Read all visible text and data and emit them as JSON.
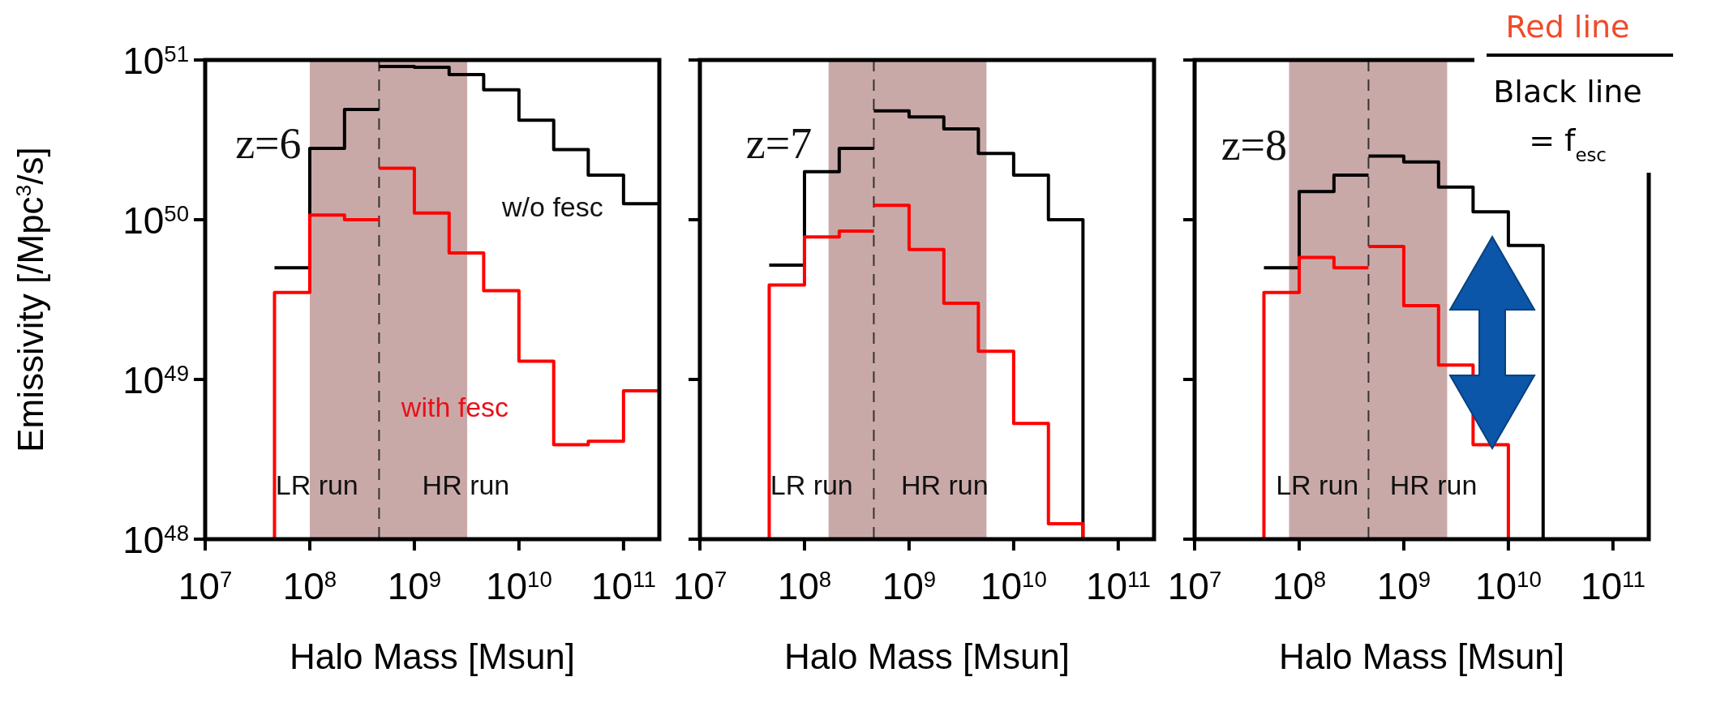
{
  "chart_data": [
    {
      "type": "step",
      "xlabel": "Halo Mass [Msun]",
      "ylabel": "Emissivity [/Mpc$^{3}$/s]",
      "log": "xy",
      "xlim": [
        10000000.0,
        220000000000.0
      ],
      "ylim": [
        1e+48,
        1e+51
      ],
      "xticks": [
        {
          "value": 10000000.0,
          "label": "10$^{7}$"
        },
        {
          "value": 100000000.0,
          "label": "10$^{8}$"
        },
        {
          "value": 1000000000.0,
          "label": "10$^{9}$"
        },
        {
          "value": 10000000000.0,
          "label": "10$^{10}$"
        },
        {
          "value": 100000000000.0,
          "label": "10$^{11}$"
        }
      ],
      "yticks": [
        {
          "value": 1e+48,
          "label": "10$^{48}$"
        },
        {
          "value": 1e+49,
          "label": "10$^{49}$"
        },
        {
          "value": 1e+50,
          "label": "10$^{50}$"
        },
        {
          "value": 1e+51,
          "label": "10$^{51}$"
        }
      ],
      "bands": [
        {
          "axis": "x",
          "from": 100000000.0,
          "to": 3200000000.0,
          "color": "#c9a9a8"
        }
      ],
      "ref_lines": [
        {
          "axis": "x",
          "value": 460000000.0,
          "color": "#333333",
          "line_style": "dashed"
        }
      ],
      "series": [
        {
          "color": "#000000",
          "x": [
            46000000.0,
            100000000.0,
            215000000.0,
            460000000.0
          ],
          "values": [
            5e+49,
            2.8e+50,
            4.9e+50,
            4.9e+50
          ]
        },
        {
          "color": "#000000",
          "x": [
            460000000.0,
            1000000000.0,
            2150000000.0,
            4600000000.0,
            10000000000.0,
            21500000000.0,
            46000000000.0,
            100000000000.0,
            215000000000.0
          ],
          "values": [
            9.1e+50,
            9e+50,
            8.1e+50,
            6.5e+50,
            4.2e+50,
            2.75e+50,
            1.9e+50,
            1.26e+50,
            1.26e+50
          ]
        },
        {
          "color": "#ff0000",
          "x": [
            46000000.0,
            46000000.0,
            100000000.0,
            215000000.0,
            460000000.0
          ],
          "values": [
            1e+48,
            3.5e+49,
            1.07e+50,
            1e+50,
            1e+50
          ]
        },
        {
          "color": "#ff0000",
          "x": [
            460000000.0,
            1000000000.0,
            2150000000.0,
            4600000000.0,
            10000000000.0,
            21500000000.0,
            46000000000.0,
            100000000000.0,
            215000000000.0
          ],
          "values": [
            2.1e+50,
            1.1e+50,
            6.2e+49,
            3.6e+49,
            1.3e+49,
            3.9e+48,
            4.1e+48,
            8.5e+48,
            8.5e+48
          ]
        }
      ],
      "annotations": [
        "z=6",
        "w/o fesc",
        "with fesc",
        "LR run",
        "HR run"
      ]
    },
    {
      "type": "step",
      "xlabel": "Halo Mass [Msun]",
      "log": "xy",
      "xlim": [
        10000000.0,
        220000000000.0
      ],
      "ylim": [
        1e+48,
        1e+51
      ],
      "tick_labels": "x",
      "xticks": [
        {
          "value": 10000000.0,
          "label": "10$^{7}$"
        },
        {
          "value": 100000000.0,
          "label": "10$^{8}$"
        },
        {
          "value": 1000000000.0,
          "label": "10$^{9}$"
        },
        {
          "value": 10000000000.0,
          "label": "10$^{10}$"
        },
        {
          "value": 100000000000.0,
          "label": "10$^{11}$"
        }
      ],
      "yticks": [
        {
          "value": 1e+48,
          "label": null
        },
        {
          "value": 1e+49,
          "label": null
        },
        {
          "value": 1e+50,
          "label": null
        },
        {
          "value": 1e+51,
          "label": null
        }
      ],
      "bands": [
        {
          "axis": "x",
          "from": 170000000.0,
          "to": 5500000000.0,
          "color": "#c9a9a8"
        }
      ],
      "ref_lines": [
        {
          "axis": "x",
          "value": 460000000.0,
          "color": "#333333",
          "line_style": "dashed"
        }
      ],
      "series": [
        {
          "color": "#000000",
          "x": [
            46000000.0,
            100000000.0,
            215000000.0,
            460000000.0
          ],
          "values": [
            5.2e+49,
            2e+50,
            2.8e+50,
            2.8e+50
          ]
        },
        {
          "color": "#000000",
          "x": [
            460000000.0,
            1000000000.0,
            2150000000.0,
            4600000000.0,
            10000000000.0,
            21500000000.0,
            46000000000.0,
            46000000000.0
          ],
          "values": [
            4.8e+50,
            4.4e+50,
            3.7e+50,
            2.6e+50,
            1.9e+50,
            1e+50,
            1e+50,
            1e+48
          ]
        },
        {
          "color": "#ff0000",
          "x": [
            46000000.0,
            46000000.0,
            100000000.0,
            215000000.0,
            460000000.0
          ],
          "values": [
            1e+48,
            3.9e+49,
            7.8e+49,
            8.5e+49,
            8.5e+49
          ]
        },
        {
          "color": "#ff0000",
          "x": [
            460000000.0,
            1000000000.0,
            2150000000.0,
            4600000000.0,
            10000000000.0,
            21500000000.0,
            46000000000.0,
            46000000000.0
          ],
          "values": [
            1.23e+50,
            6.5e+49,
            3e+49,
            1.5e+49,
            5.3e+48,
            1.25e+48,
            1.25e+48,
            1e+48
          ]
        }
      ],
      "annotations": [
        "z=7",
        "LR run",
        "HR run"
      ]
    },
    {
      "type": "step",
      "xlabel": "Halo Mass [Msun]",
      "log": "xy",
      "xlim": [
        10000000.0,
        220000000000.0
      ],
      "ylim": [
        1e+48,
        1e+51
      ],
      "tick_labels": "x",
      "xticks": [
        {
          "value": 10000000.0,
          "label": "10$^{7}$"
        },
        {
          "value": 100000000.0,
          "label": "10$^{8}$"
        },
        {
          "value": 1000000000.0,
          "label": "10$^{9}$"
        },
        {
          "value": 10000000000.0,
          "label": "10$^{10}$"
        },
        {
          "value": 100000000000.0,
          "label": "10$^{11}$"
        }
      ],
      "yticks": [
        {
          "value": 1e+48,
          "label": null
        },
        {
          "value": 1e+49,
          "label": null
        },
        {
          "value": 1e+50,
          "label": null
        },
        {
          "value": 1e+51,
          "label": null
        }
      ],
      "bands": [
        {
          "axis": "x",
          "from": 80000000.0,
          "to": 2600000000.0,
          "color": "#c9a9a8"
        }
      ],
      "ref_lines": [
        {
          "axis": "x",
          "value": 460000000.0,
          "color": "#333333",
          "line_style": "dashed"
        }
      ],
      "series": [
        {
          "color": "#000000",
          "x": [
            46000000.0,
            100000000.0,
            215000000.0,
            460000000.0
          ],
          "values": [
            5e+49,
            1.5e+50,
            1.9e+50,
            1.9e+50
          ]
        },
        {
          "color": "#000000",
          "x": [
            460000000.0,
            1000000000.0,
            2150000000.0,
            4600000000.0,
            10000000000.0,
            21500000000.0,
            21500000000.0
          ],
          "values": [
            2.5e+50,
            2.3e+50,
            1.6e+50,
            1.12e+50,
            6.9e+49,
            6.9e+49,
            1e+48
          ]
        },
        {
          "color": "#ff0000",
          "x": [
            46000000.0,
            46000000.0,
            100000000.0,
            215000000.0,
            460000000.0
          ],
          "values": [
            1e+48,
            3.5e+49,
            5.8e+49,
            5e+49,
            5e+49
          ]
        },
        {
          "color": "#ff0000",
          "x": [
            460000000.0,
            1000000000.0,
            2150000000.0,
            4600000000.0,
            10000000000.0,
            10000000000.0
          ],
          "values": [
            6.8e+49,
            2.9e+49,
            1.23e+49,
            3.9e+48,
            3.9e+48,
            1e+48
          ]
        }
      ],
      "annotations": [
        "z=8",
        "LR run",
        "HR run",
        "Red line",
        "Black line",
        "= f$_{esc}$"
      ]
    }
  ]
}
